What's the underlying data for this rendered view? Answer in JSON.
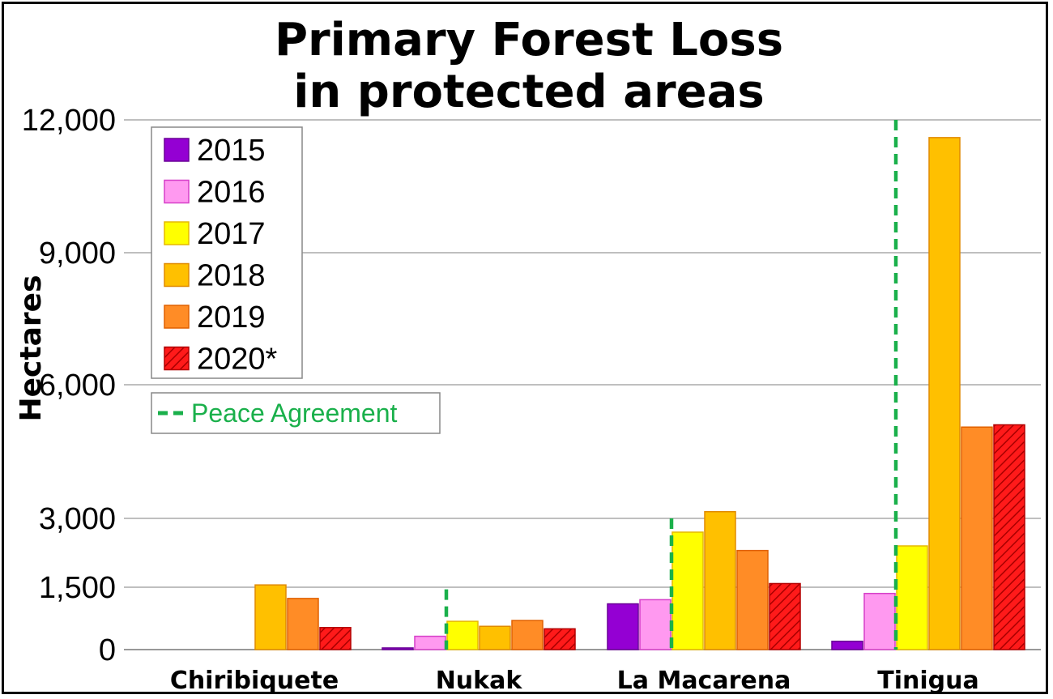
{
  "chart_data": {
    "type": "bar",
    "title": [
      "Primary Forest Loss",
      "in protected areas"
    ],
    "ylabel": "Hectares",
    "xlabel": "",
    "ylim": [
      0,
      12000
    ],
    "yticks": [
      "0",
      "1,500",
      "3,000",
      "6,000",
      "9,000",
      "12,000"
    ],
    "ytick_values": [
      0,
      1500,
      3000,
      6000,
      9000,
      12000
    ],
    "grid": true,
    "legend_placement": "top-left",
    "categories": [
      "Chiribiquete",
      "Nukak",
      "La Macarena",
      "Tinigua"
    ],
    "series": [
      {
        "name": "2015",
        "color": "#9400d3",
        "stroke": "#6a0096",
        "hatch": false,
        "values": [
          0,
          40,
          1100,
          200
        ]
      },
      {
        "name": "2016",
        "color": "#ff99f0",
        "stroke": "#d63fc8",
        "hatch": false,
        "values": [
          0,
          320,
          1200,
          1350
        ]
      },
      {
        "name": "2017",
        "color": "#ffff00",
        "stroke": "#e6b800",
        "hatch": false,
        "values": [
          0,
          680,
          2700,
          2400
        ]
      },
      {
        "name": "2018",
        "color": "#ffc000",
        "stroke": "#e08a00",
        "hatch": false,
        "values": [
          1550,
          560,
          3150,
          11600
        ]
      },
      {
        "name": "2019",
        "color": "#ff8c26",
        "stroke": "#e06000",
        "hatch": false,
        "values": [
          1230,
          700,
          2300,
          5050
        ]
      },
      {
        "name": "2020*",
        "color": "#ff1a1a",
        "stroke": "#b30000",
        "hatch": true,
        "values": [
          530,
          500,
          1580,
          5100
        ]
      }
    ],
    "peace_agreement": {
      "label": "Peace Agreement",
      "color": "#1ab04b",
      "lines": [
        {
          "category": "Nukak",
          "after_series": "2016",
          "value": 1450
        },
        {
          "category": "La Macarena",
          "after_series": "2016",
          "value": 3000
        },
        {
          "category": "Tinigua",
          "after_series": "2016",
          "value": 12000
        }
      ]
    }
  }
}
